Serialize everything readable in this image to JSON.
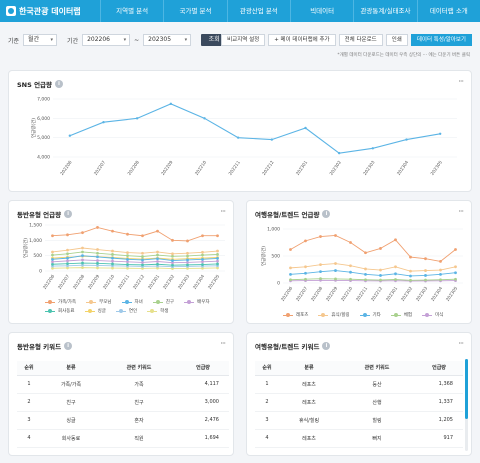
{
  "app": {
    "title": "한국관광 데이터랩"
  },
  "nav": [
    "지역별 분석",
    "국가별 분석",
    "관광산업 분석",
    "빅데이터",
    "관광통계/실태조사",
    "데이터랩 소개"
  ],
  "filter": {
    "basis_label": "기준",
    "basis_value": "월간",
    "period_label": "기간",
    "start": "202206",
    "tilde": "~",
    "end": "202305",
    "query_button": "조회"
  },
  "actions": {
    "compare": "비교지역 설정",
    "add_data": "+ 메이 데이터랩에 추가",
    "download": "전체 다운로드",
    "print": "인쇄",
    "data_service": "데이터 특성/알아보기"
  },
  "notice": "*개별 데이터 다운로드는 데이터 우측 상단의 ··· 에는 다운기 버튼 클릭",
  "icons": {
    "info": "i",
    "more": "···",
    "chevron": "▾"
  },
  "colors": {
    "primary": "#1fa1d8",
    "dark": "#3b4a5e"
  },
  "sns": {
    "title": "SNS 언급량",
    "chart_data": {
      "type": "line",
      "title": "SNS 언급량",
      "ylabel": "언급량(건)",
      "x": [
        "202206",
        "202207",
        "202208",
        "202209",
        "202210",
        "202211",
        "202212",
        "202301",
        "202302",
        "202303",
        "202304",
        "202305"
      ],
      "yticks": [
        "7,000",
        "6,000",
        "5,000",
        "4,000"
      ],
      "ylim": [
        4000,
        7000
      ],
      "values": [
        5100,
        5800,
        6000,
        6750,
        6000,
        5000,
        4900,
        5500,
        4200,
        4450,
        4900,
        5200
      ],
      "color": "#5bb4e5"
    }
  },
  "companion": {
    "title": "동반유형 언급량",
    "chart_data": {
      "type": "line",
      "ylabel": "언급량(건)",
      "x": [
        "202206",
        "202207",
        "202208",
        "202209",
        "202210",
        "202211",
        "202212",
        "202301",
        "202302",
        "202303",
        "202304",
        "202305"
      ],
      "yticks": [
        "1,500",
        "1,000",
        "500",
        "0"
      ],
      "ylim": [
        0,
        1500
      ],
      "series": [
        {
          "name": "가족/가족",
          "color": "#f0a070",
          "values": [
            1150,
            1180,
            1250,
            1420,
            1300,
            1200,
            1150,
            1300,
            1000,
            980,
            1150,
            1150
          ]
        },
        {
          "name": "부모님",
          "color": "#f5c78e",
          "values": [
            620,
            680,
            750,
            700,
            650,
            600,
            580,
            620,
            560,
            580,
            610,
            650
          ]
        },
        {
          "name": "자녀",
          "color": "#5bb4e5",
          "values": [
            380,
            420,
            500,
            460,
            420,
            380,
            360,
            400,
            340,
            360,
            380,
            410
          ]
        },
        {
          "name": "친구",
          "color": "#a9d18e",
          "values": [
            520,
            560,
            620,
            580,
            540,
            500,
            470,
            520,
            480,
            490,
            520,
            540
          ]
        },
        {
          "name": "배우자",
          "color": "#c4a0d6",
          "values": [
            300,
            330,
            360,
            340,
            320,
            300,
            280,
            310,
            270,
            280,
            300,
            320
          ]
        },
        {
          "name": "회사동료",
          "color": "#4dc3b0",
          "values": [
            220,
            240,
            260,
            250,
            230,
            210,
            200,
            220,
            190,
            200,
            210,
            230
          ]
        },
        {
          "name": "싱글",
          "color": "#f3d36a",
          "values": [
            420,
            450,
            480,
            470,
            440,
            410,
            390,
            420,
            380,
            400,
            420,
            440
          ]
        },
        {
          "name": "연인",
          "color": "#9fc9e9",
          "values": [
            160,
            170,
            190,
            180,
            170,
            160,
            150,
            160,
            140,
            150,
            160,
            170
          ]
        },
        {
          "name": "학생",
          "color": "#e6e08c",
          "values": [
            90,
            100,
            110,
            100,
            95,
            90,
            85,
            95,
            80,
            85,
            90,
            100
          ]
        }
      ]
    }
  },
  "trend": {
    "title": "여행유형/트렌드 언급량",
    "chart_data": {
      "type": "line",
      "ylabel": "언급량(건)",
      "x": [
        "202206",
        "202207",
        "202208",
        "202209",
        "202210",
        "202211",
        "202212",
        "202301",
        "202302",
        "202303",
        "202304",
        "202305"
      ],
      "yticks": [
        "1,000",
        "500",
        "0"
      ],
      "ylim": [
        0,
        1000
      ],
      "series": [
        {
          "name": "레포츠",
          "color": "#f0a070",
          "values": [
            620,
            780,
            860,
            880,
            750,
            560,
            640,
            800,
            480,
            450,
            400,
            620
          ]
        },
        {
          "name": "휴식/힐링",
          "color": "#f5c78e",
          "values": [
            280,
            300,
            340,
            360,
            320,
            260,
            240,
            300,
            220,
            230,
            240,
            300
          ]
        },
        {
          "name": "기타",
          "color": "#5bb4e5",
          "values": [
            160,
            180,
            210,
            230,
            200,
            160,
            140,
            170,
            130,
            140,
            160,
            190
          ]
        },
        {
          "name": "체험",
          "color": "#a9d18e",
          "values": [
            60,
            70,
            80,
            75,
            70,
            60,
            55,
            65,
            50,
            55,
            60,
            70
          ]
        },
        {
          "name": "미식",
          "color": "#c4a0d6",
          "values": [
            40,
            45,
            50,
            48,
            45,
            40,
            38,
            42,
            35,
            38,
            40,
            45
          ]
        }
      ]
    }
  },
  "companion_keywords": {
    "title": "동반유형 키워드",
    "headers": [
      "순위",
      "분류",
      "관련 키워드",
      "언급량"
    ],
    "rows": [
      [
        "1",
        "가족/가족",
        "가족",
        "4,117"
      ],
      [
        "2",
        "친구",
        "친구",
        "3,000"
      ],
      [
        "3",
        "싱글",
        "혼자",
        "2,476"
      ],
      [
        "4",
        "회사동료",
        "직원",
        "1,694"
      ]
    ]
  },
  "trend_keywords": {
    "title": "여행유형/트렌드 키워드",
    "headers": [
      "순위",
      "분류",
      "관련 키워드",
      "언급량"
    ],
    "rows": [
      [
        "1",
        "레포츠",
        "등산",
        "1,368"
      ],
      [
        "2",
        "레포츠",
        "산행",
        "1,337"
      ],
      [
        "3",
        "휴식/힐링",
        "힐링",
        "1,205"
      ],
      [
        "4",
        "레포츠",
        "뻐지",
        "917"
      ]
    ]
  }
}
